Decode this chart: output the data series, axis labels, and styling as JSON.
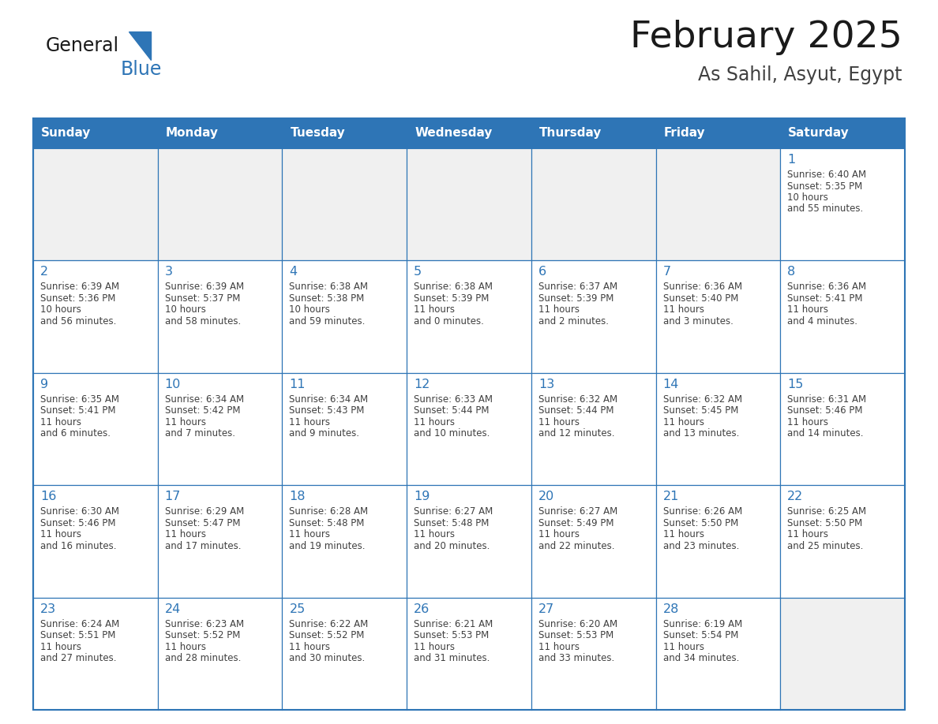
{
  "title": "February 2025",
  "subtitle": "As Sahil, Asyut, Egypt",
  "header_color": "#2E75B6",
  "header_text_color": "#FFFFFF",
  "border_color": "#2E75B6",
  "day_number_color": "#2E75B6",
  "info_text_color": "#404040",
  "cell_bg_even": "#F2F2F2",
  "cell_bg_odd": "#FFFFFF",
  "days_of_week": [
    "Sunday",
    "Monday",
    "Tuesday",
    "Wednesday",
    "Thursday",
    "Friday",
    "Saturday"
  ],
  "calendar_data": [
    [
      {
        "day": null,
        "sunrise": null,
        "sunset": null,
        "daylight": null
      },
      {
        "day": null,
        "sunrise": null,
        "sunset": null,
        "daylight": null
      },
      {
        "day": null,
        "sunrise": null,
        "sunset": null,
        "daylight": null
      },
      {
        "day": null,
        "sunrise": null,
        "sunset": null,
        "daylight": null
      },
      {
        "day": null,
        "sunrise": null,
        "sunset": null,
        "daylight": null
      },
      {
        "day": null,
        "sunrise": null,
        "sunset": null,
        "daylight": null
      },
      {
        "day": 1,
        "sunrise": "6:40 AM",
        "sunset": "5:35 PM",
        "daylight": "10 hours and 55 minutes."
      }
    ],
    [
      {
        "day": 2,
        "sunrise": "6:39 AM",
        "sunset": "5:36 PM",
        "daylight": "10 hours and 56 minutes."
      },
      {
        "day": 3,
        "sunrise": "6:39 AM",
        "sunset": "5:37 PM",
        "daylight": "10 hours and 58 minutes."
      },
      {
        "day": 4,
        "sunrise": "6:38 AM",
        "sunset": "5:38 PM",
        "daylight": "10 hours and 59 minutes."
      },
      {
        "day": 5,
        "sunrise": "6:38 AM",
        "sunset": "5:39 PM",
        "daylight": "11 hours and 0 minutes."
      },
      {
        "day": 6,
        "sunrise": "6:37 AM",
        "sunset": "5:39 PM",
        "daylight": "11 hours and 2 minutes."
      },
      {
        "day": 7,
        "sunrise": "6:36 AM",
        "sunset": "5:40 PM",
        "daylight": "11 hours and 3 minutes."
      },
      {
        "day": 8,
        "sunrise": "6:36 AM",
        "sunset": "5:41 PM",
        "daylight": "11 hours and 4 minutes."
      }
    ],
    [
      {
        "day": 9,
        "sunrise": "6:35 AM",
        "sunset": "5:41 PM",
        "daylight": "11 hours and 6 minutes."
      },
      {
        "day": 10,
        "sunrise": "6:34 AM",
        "sunset": "5:42 PM",
        "daylight": "11 hours and 7 minutes."
      },
      {
        "day": 11,
        "sunrise": "6:34 AM",
        "sunset": "5:43 PM",
        "daylight": "11 hours and 9 minutes."
      },
      {
        "day": 12,
        "sunrise": "6:33 AM",
        "sunset": "5:44 PM",
        "daylight": "11 hours and 10 minutes."
      },
      {
        "day": 13,
        "sunrise": "6:32 AM",
        "sunset": "5:44 PM",
        "daylight": "11 hours and 12 minutes."
      },
      {
        "day": 14,
        "sunrise": "6:32 AM",
        "sunset": "5:45 PM",
        "daylight": "11 hours and 13 minutes."
      },
      {
        "day": 15,
        "sunrise": "6:31 AM",
        "sunset": "5:46 PM",
        "daylight": "11 hours and 14 minutes."
      }
    ],
    [
      {
        "day": 16,
        "sunrise": "6:30 AM",
        "sunset": "5:46 PM",
        "daylight": "11 hours and 16 minutes."
      },
      {
        "day": 17,
        "sunrise": "6:29 AM",
        "sunset": "5:47 PM",
        "daylight": "11 hours and 17 minutes."
      },
      {
        "day": 18,
        "sunrise": "6:28 AM",
        "sunset": "5:48 PM",
        "daylight": "11 hours and 19 minutes."
      },
      {
        "day": 19,
        "sunrise": "6:27 AM",
        "sunset": "5:48 PM",
        "daylight": "11 hours and 20 minutes."
      },
      {
        "day": 20,
        "sunrise": "6:27 AM",
        "sunset": "5:49 PM",
        "daylight": "11 hours and 22 minutes."
      },
      {
        "day": 21,
        "sunrise": "6:26 AM",
        "sunset": "5:50 PM",
        "daylight": "11 hours and 23 minutes."
      },
      {
        "day": 22,
        "sunrise": "6:25 AM",
        "sunset": "5:50 PM",
        "daylight": "11 hours and 25 minutes."
      }
    ],
    [
      {
        "day": 23,
        "sunrise": "6:24 AM",
        "sunset": "5:51 PM",
        "daylight": "11 hours and 27 minutes."
      },
      {
        "day": 24,
        "sunrise": "6:23 AM",
        "sunset": "5:52 PM",
        "daylight": "11 hours and 28 minutes."
      },
      {
        "day": 25,
        "sunrise": "6:22 AM",
        "sunset": "5:52 PM",
        "daylight": "11 hours and 30 minutes."
      },
      {
        "day": 26,
        "sunrise": "6:21 AM",
        "sunset": "5:53 PM",
        "daylight": "11 hours and 31 minutes."
      },
      {
        "day": 27,
        "sunrise": "6:20 AM",
        "sunset": "5:53 PM",
        "daylight": "11 hours and 33 minutes."
      },
      {
        "day": 28,
        "sunrise": "6:19 AM",
        "sunset": "5:54 PM",
        "daylight": "11 hours and 34 minutes."
      },
      {
        "day": null,
        "sunrise": null,
        "sunset": null,
        "daylight": null
      }
    ]
  ],
  "fig_width": 11.88,
  "fig_height": 9.18,
  "dpi": 100
}
